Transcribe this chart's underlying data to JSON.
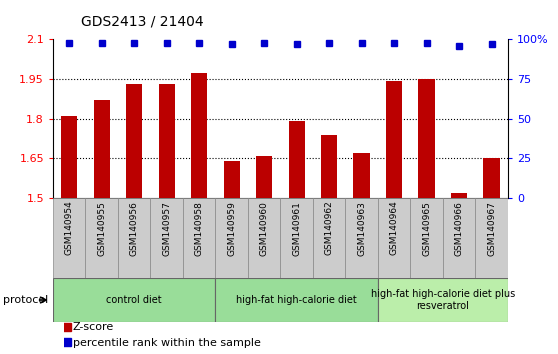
{
  "title": "GDS2413 / 21404",
  "categories": [
    "GSM140954",
    "GSM140955",
    "GSM140956",
    "GSM140957",
    "GSM140958",
    "GSM140959",
    "GSM140960",
    "GSM140961",
    "GSM140962",
    "GSM140963",
    "GSM140964",
    "GSM140965",
    "GSM140966",
    "GSM140967"
  ],
  "zscore": [
    1.81,
    1.87,
    1.93,
    1.93,
    1.97,
    1.64,
    1.66,
    1.79,
    1.74,
    1.67,
    1.94,
    1.95,
    1.52,
    1.65
  ],
  "percentile_y": [
    2.085,
    2.085,
    2.085,
    2.085,
    2.085,
    2.08,
    2.085,
    2.08,
    2.085,
    2.085,
    2.085,
    2.085,
    2.075,
    2.082
  ],
  "bar_color": "#bb0000",
  "dot_color": "#0000cc",
  "ylim_left": [
    1.5,
    2.1
  ],
  "ylim_right": [
    0,
    100
  ],
  "yticks_left": [
    1.5,
    1.65,
    1.8,
    1.95,
    2.1
  ],
  "ytick_labels_left": [
    "1.5",
    "1.65",
    "1.8",
    "1.95",
    "2.1"
  ],
  "yticks_right": [
    0,
    25,
    50,
    75,
    100
  ],
  "ytick_labels_right": [
    "0",
    "25",
    "50",
    "75",
    "100%"
  ],
  "groups": [
    {
      "label": "control diet",
      "start": 0,
      "end": 4,
      "color": "#99dd99"
    },
    {
      "label": "high-fat high-calorie diet",
      "start": 5,
      "end": 9,
      "color": "#99dd99"
    },
    {
      "label": "high-fat high-calorie diet plus\nresveratrol",
      "start": 10,
      "end": 13,
      "color": "#bbeeaa"
    }
  ],
  "protocol_label": "protocol",
  "legend_zscore": "Z-score",
  "legend_percentile": "percentile rank within the sample"
}
